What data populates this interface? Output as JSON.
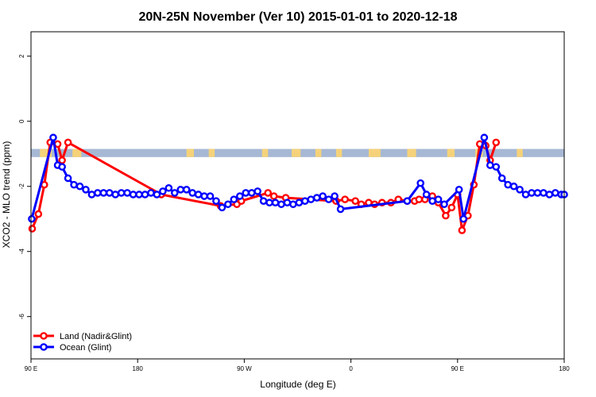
{
  "chart_data": {
    "type": "line",
    "title": "20N-25N November (Ver 10)   2015-01-01 to 2020-12-18",
    "xlabel": "Longitude (deg E)",
    "ylabel": "XCO2 - MLO trend (ppm)",
    "xlim": [
      90,
      450
    ],
    "ylim": [
      -7.3,
      2.75
    ],
    "x_ticks": [
      {
        "value": 90,
        "label": "90 E"
      },
      {
        "value": 162,
        "label": "180"
      },
      {
        "value": 234,
        "label": "90 W"
      },
      {
        "value": 306,
        "label": "0"
      },
      {
        "value": 378,
        "label": "90 E"
      },
      {
        "value": 450,
        "label": "180"
      }
    ],
    "y_ticks": [
      {
        "value": 2,
        "label": "2"
      },
      {
        "value": 0,
        "label": "0"
      },
      {
        "value": -2,
        "label": "-2"
      },
      {
        "value": -4,
        "label": "-4"
      },
      {
        "value": -6,
        "label": "-6"
      }
    ],
    "map_band": {
      "y_top": -0.85,
      "y_bottom": -1.1,
      "ocean_color": "#a6b8d4",
      "land_color": "#f5d27a"
    },
    "legend": {
      "position": "bottom-left"
    },
    "series": [
      {
        "name": "Land (Nadir&Glint)",
        "color": "#ff0000",
        "points": [
          [
            90.8,
            -3.3
          ],
          [
            95,
            -2.85
          ],
          [
            99,
            -1.95
          ],
          [
            103,
            -0.65
          ],
          [
            108,
            -0.7
          ],
          [
            111,
            -1.2
          ],
          [
            115,
            -0.65
          ],
          [
            178,
            -2.25
          ],
          [
            218,
            -2.6
          ],
          [
            229,
            -2.55
          ],
          [
            232,
            -2.45
          ],
          [
            250,
            -2.2
          ],
          [
            254,
            -2.3
          ],
          [
            262,
            -2.35
          ],
          [
            296,
            -2.45
          ],
          [
            302,
            -2.4
          ],
          [
            309,
            -2.45
          ],
          [
            313,
            -2.55
          ],
          [
            318,
            -2.5
          ],
          [
            322,
            -2.55
          ],
          [
            327,
            -2.5
          ],
          [
            333,
            -2.5
          ],
          [
            338,
            -2.4
          ],
          [
            344,
            -2.45
          ],
          [
            349,
            -2.45
          ],
          [
            352,
            -2.4
          ],
          [
            356,
            -2.4
          ],
          [
            361,
            -2.3
          ],
          [
            365,
            -2.5
          ],
          [
            370,
            -2.9
          ],
          [
            374,
            -2.65
          ],
          [
            378,
            -2.25
          ],
          [
            381,
            -3.35
          ],
          [
            385,
            -2.9
          ],
          [
            389,
            -1.95
          ],
          [
            393,
            -0.7
          ],
          [
            397,
            -0.75
          ],
          [
            400,
            -1.2
          ],
          [
            404,
            -0.65
          ]
        ]
      },
      {
        "name": "Ocean (Glint)",
        "color": "#0000ff",
        "points": [
          [
            90.5,
            -3.0
          ],
          [
            105,
            -0.5
          ],
          [
            108,
            -1.35
          ],
          [
            111,
            -1.4
          ],
          [
            115,
            -1.75
          ],
          [
            119,
            -1.95
          ],
          [
            123,
            -2.0
          ],
          [
            127,
            -2.1
          ],
          [
            131,
            -2.25
          ],
          [
            135,
            -2.2
          ],
          [
            139,
            -2.2
          ],
          [
            143,
            -2.2
          ],
          [
            147,
            -2.25
          ],
          [
            151,
            -2.2
          ],
          [
            155,
            -2.2
          ],
          [
            159,
            -2.25
          ],
          [
            163,
            -2.25
          ],
          [
            167,
            -2.25
          ],
          [
            171,
            -2.2
          ],
          [
            175,
            -2.25
          ],
          [
            179,
            -2.15
          ],
          [
            183,
            -2.05
          ],
          [
            187,
            -2.2
          ],
          [
            191,
            -2.1
          ],
          [
            195,
            -2.1
          ],
          [
            199,
            -2.2
          ],
          [
            203,
            -2.25
          ],
          [
            207,
            -2.3
          ],
          [
            211,
            -2.3
          ],
          [
            215,
            -2.45
          ],
          [
            219,
            -2.65
          ],
          [
            223,
            -2.55
          ],
          [
            227,
            -2.4
          ],
          [
            231,
            -2.3
          ],
          [
            235,
            -2.2
          ],
          [
            239,
            -2.2
          ],
          [
            243,
            -2.15
          ],
          [
            247,
            -2.45
          ],
          [
            251,
            -2.5
          ],
          [
            255,
            -2.5
          ],
          [
            259,
            -2.55
          ],
          [
            263,
            -2.5
          ],
          [
            267,
            -2.55
          ],
          [
            271,
            -2.5
          ],
          [
            275,
            -2.45
          ],
          [
            279,
            -2.4
          ],
          [
            283,
            -2.35
          ],
          [
            287,
            -2.3
          ],
          [
            291,
            -2.4
          ],
          [
            295,
            -2.3
          ],
          [
            299,
            -2.7
          ],
          [
            344,
            -2.45
          ],
          [
            353,
            -1.9
          ],
          [
            357,
            -2.25
          ],
          [
            361,
            -2.45
          ],
          [
            365,
            -2.4
          ],
          [
            369,
            -2.55
          ],
          [
            379,
            -2.1
          ],
          [
            382,
            -3.0
          ],
          [
            396,
            -0.5
          ],
          [
            400,
            -1.35
          ],
          [
            404,
            -1.4
          ],
          [
            408,
            -1.75
          ],
          [
            412,
            -1.95
          ],
          [
            416,
            -2.0
          ],
          [
            420,
            -2.1
          ],
          [
            424,
            -2.25
          ],
          [
            428,
            -2.2
          ],
          [
            432,
            -2.2
          ],
          [
            436,
            -2.2
          ],
          [
            440,
            -2.25
          ],
          [
            444,
            -2.2
          ],
          [
            448,
            -2.25
          ],
          [
            450,
            -2.25
          ]
        ]
      }
    ]
  }
}
